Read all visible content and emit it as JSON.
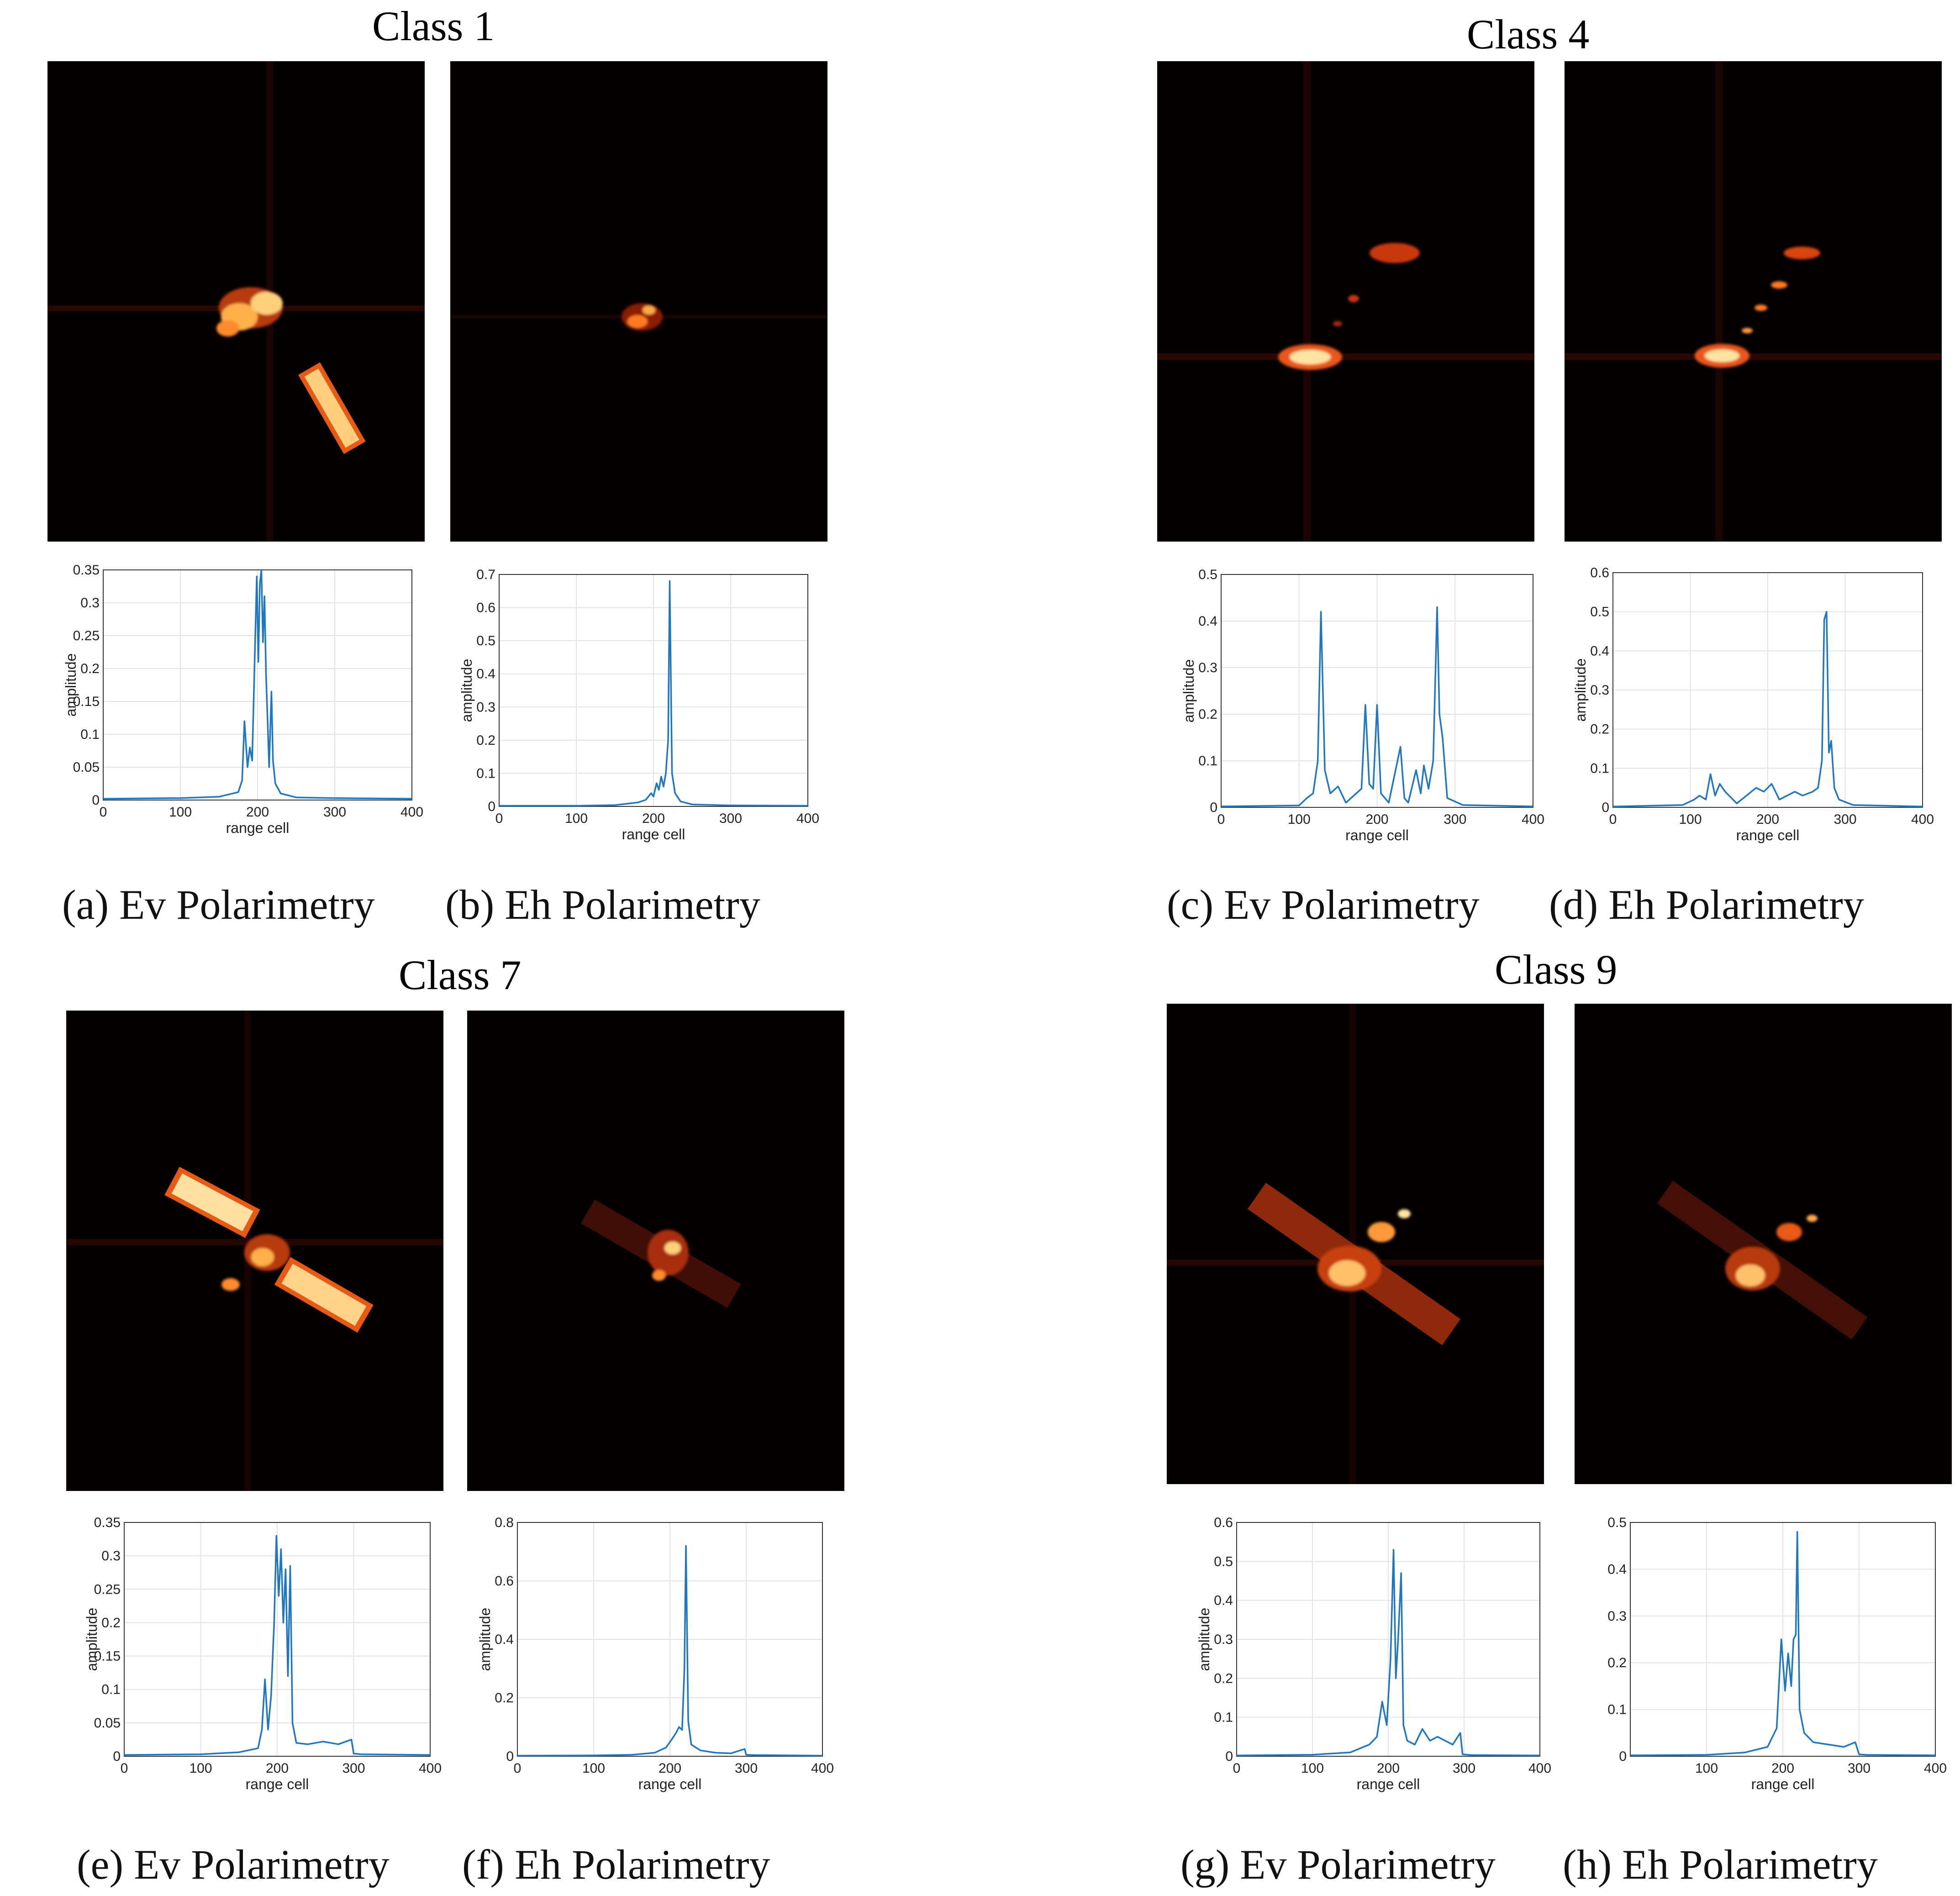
{
  "groups": [
    {
      "title": "Class 1",
      "panels": [
        {
          "caption": "(a) Ev Polarimetry",
          "chart_index": 0
        },
        {
          "caption": "(b) Eh Polarimetry",
          "chart_index": 1
        }
      ]
    },
    {
      "title": "Class 4",
      "panels": [
        {
          "caption": "(c) Ev Polarimetry",
          "chart_index": 2
        },
        {
          "caption": "(d) Eh Polarimetry",
          "chart_index": 3
        }
      ]
    },
    {
      "title": "Class 7",
      "panels": [
        {
          "caption": "(e) Ev Polarimetry",
          "chart_index": 4
        },
        {
          "caption": "(f) Eh Polarimetry",
          "chart_index": 5
        }
      ]
    },
    {
      "title": "Class 9",
      "panels": [
        {
          "caption": "(g) Ev Polarimetry",
          "chart_index": 6
        },
        {
          "caption": "(h) Eh Polarimetry",
          "chart_index": 7
        }
      ]
    }
  ],
  "colors": {
    "line": "#1f77c4",
    "grid": "#e3e3e3",
    "axis": "#333333",
    "image_bg": "#050000",
    "hot": "#ff6a1a"
  },
  "chart_data": [
    {
      "type": "line",
      "xlabel": "range cell",
      "ylabel": "amplitude",
      "xlim": [
        0,
        400
      ],
      "ylim": [
        0,
        0.35
      ],
      "xticks": [
        0,
        100,
        200,
        300,
        400
      ],
      "yticks": [
        0,
        0.05,
        0.1,
        0.15,
        0.2,
        0.25,
        0.3,
        0.35
      ],
      "grid": true,
      "x": [
        0,
        100,
        150,
        175,
        180,
        183,
        187,
        190,
        193,
        196,
        199,
        201,
        203,
        205,
        207,
        209,
        211,
        213,
        215,
        218,
        220,
        223,
        230,
        250,
        300,
        400
      ],
      "values": [
        0.002,
        0.003,
        0.005,
        0.012,
        0.03,
        0.12,
        0.05,
        0.08,
        0.06,
        0.2,
        0.34,
        0.21,
        0.33,
        0.35,
        0.24,
        0.31,
        0.19,
        0.12,
        0.05,
        0.165,
        0.06,
        0.025,
        0.01,
        0.004,
        0.003,
        0.002
      ]
    },
    {
      "type": "line",
      "xlabel": "range cell",
      "ylabel": "amplitude",
      "xlim": [
        0,
        400
      ],
      "ylim": [
        0,
        0.7
      ],
      "xticks": [
        0,
        100,
        200,
        300,
        400
      ],
      "yticks": [
        0,
        0.1,
        0.2,
        0.3,
        0.4,
        0.5,
        0.6,
        0.7
      ],
      "grid": true,
      "x": [
        0,
        100,
        150,
        180,
        190,
        197,
        200,
        204,
        207,
        210,
        213,
        216,
        219,
        221,
        224,
        228,
        235,
        250,
        300,
        400
      ],
      "values": [
        0.002,
        0.002,
        0.004,
        0.012,
        0.02,
        0.04,
        0.03,
        0.07,
        0.05,
        0.09,
        0.06,
        0.1,
        0.2,
        0.68,
        0.1,
        0.04,
        0.015,
        0.006,
        0.003,
        0.002
      ]
    },
    {
      "type": "line",
      "xlabel": "range cell",
      "ylabel": "amplitude",
      "xlim": [
        0,
        400
      ],
      "ylim": [
        0,
        0.5
      ],
      "xticks": [
        0,
        100,
        200,
        300,
        400
      ],
      "yticks": [
        0,
        0.1,
        0.2,
        0.3,
        0.4,
        0.5
      ],
      "grid": true,
      "x": [
        0,
        100,
        110,
        118,
        124,
        128,
        133,
        140,
        150,
        160,
        180,
        185,
        190,
        195,
        200,
        205,
        215,
        230,
        235,
        240,
        250,
        256,
        260,
        266,
        272,
        277,
        280,
        284,
        290,
        310,
        400
      ],
      "values": [
        0.002,
        0.004,
        0.02,
        0.03,
        0.1,
        0.42,
        0.08,
        0.03,
        0.045,
        0.01,
        0.04,
        0.22,
        0.05,
        0.04,
        0.22,
        0.03,
        0.01,
        0.13,
        0.02,
        0.01,
        0.08,
        0.03,
        0.09,
        0.04,
        0.1,
        0.43,
        0.2,
        0.15,
        0.02,
        0.005,
        0.002
      ]
    },
    {
      "type": "line",
      "xlabel": "range cell",
      "ylabel": "amplitude",
      "xlim": [
        0,
        400
      ],
      "ylim": [
        0,
        0.6
      ],
      "xticks": [
        0,
        100,
        200,
        300,
        400
      ],
      "yticks": [
        0,
        0.1,
        0.2,
        0.3,
        0.4,
        0.5,
        0.6
      ],
      "grid": true,
      "x": [
        0,
        90,
        105,
        112,
        120,
        126,
        132,
        138,
        145,
        160,
        185,
        195,
        205,
        215,
        235,
        245,
        258,
        265,
        270,
        273,
        276,
        279,
        282,
        286,
        292,
        310,
        400
      ],
      "values": [
        0.002,
        0.006,
        0.02,
        0.03,
        0.02,
        0.085,
        0.03,
        0.06,
        0.04,
        0.01,
        0.05,
        0.04,
        0.06,
        0.02,
        0.04,
        0.03,
        0.04,
        0.05,
        0.12,
        0.48,
        0.5,
        0.14,
        0.17,
        0.05,
        0.02,
        0.006,
        0.002
      ]
    },
    {
      "type": "line",
      "xlabel": "range cell",
      "ylabel": "amplitude",
      "xlim": [
        0,
        400
      ],
      "ylim": [
        0,
        0.35
      ],
      "xticks": [
        0,
        100,
        200,
        300,
        400
      ],
      "yticks": [
        0,
        0.05,
        0.1,
        0.15,
        0.2,
        0.25,
        0.3,
        0.35
      ],
      "grid": true,
      "x": [
        0,
        100,
        150,
        175,
        180,
        184,
        188,
        192,
        196,
        199,
        202,
        205,
        208,
        211,
        214,
        217,
        220,
        225,
        240,
        260,
        280,
        297,
        300,
        310,
        400
      ],
      "values": [
        0.002,
        0.003,
        0.006,
        0.012,
        0.04,
        0.115,
        0.04,
        0.09,
        0.2,
        0.33,
        0.24,
        0.31,
        0.2,
        0.28,
        0.12,
        0.285,
        0.05,
        0.02,
        0.018,
        0.022,
        0.018,
        0.025,
        0.004,
        0.003,
        0.002
      ]
    },
    {
      "type": "line",
      "xlabel": "range cell",
      "ylabel": "amplitude",
      "xlim": [
        0,
        400
      ],
      "ylim": [
        0,
        0.8
      ],
      "xticks": [
        0,
        100,
        200,
        300,
        400
      ],
      "yticks": [
        0,
        0.2,
        0.4,
        0.6,
        0.8
      ],
      "grid": true,
      "x": [
        0,
        100,
        150,
        180,
        195,
        203,
        208,
        212,
        216,
        219,
        221,
        224,
        228,
        240,
        260,
        280,
        298,
        300,
        310,
        400
      ],
      "values": [
        0.002,
        0.003,
        0.005,
        0.012,
        0.03,
        0.06,
        0.08,
        0.1,
        0.09,
        0.3,
        0.72,
        0.12,
        0.04,
        0.02,
        0.012,
        0.01,
        0.025,
        0.005,
        0.004,
        0.002
      ]
    },
    {
      "type": "line",
      "xlabel": "range cell",
      "ylabel": "amplitude",
      "xlim": [
        0,
        400
      ],
      "ylim": [
        0,
        0.6
      ],
      "xticks": [
        0,
        100,
        200,
        300,
        400
      ],
      "yticks": [
        0,
        0.1,
        0.2,
        0.3,
        0.4,
        0.5,
        0.6
      ],
      "grid": true,
      "x": [
        0,
        100,
        150,
        175,
        185,
        192,
        198,
        203,
        207,
        210,
        213,
        217,
        220,
        225,
        235,
        245,
        255,
        265,
        275,
        285,
        295,
        298,
        310,
        400
      ],
      "values": [
        0.002,
        0.004,
        0.01,
        0.03,
        0.05,
        0.14,
        0.08,
        0.25,
        0.53,
        0.2,
        0.3,
        0.47,
        0.08,
        0.04,
        0.03,
        0.07,
        0.04,
        0.05,
        0.04,
        0.03,
        0.06,
        0.005,
        0.003,
        0.002
      ]
    },
    {
      "type": "line",
      "xlabel": "range cell",
      "ylabel": "",
      "xlim": [
        0,
        400
      ],
      "ylim": [
        0,
        0.5
      ],
      "xticks": [
        100,
        200,
        300,
        400
      ],
      "yticks": [
        0,
        0.1,
        0.2,
        0.3,
        0.4,
        0.5
      ],
      "grid": true,
      "x": [
        0,
        100,
        150,
        180,
        192,
        198,
        203,
        207,
        211,
        214,
        217,
        219,
        222,
        228,
        240,
        260,
        280,
        295,
        300,
        310,
        400
      ],
      "values": [
        0.002,
        0.003,
        0.008,
        0.02,
        0.06,
        0.25,
        0.14,
        0.22,
        0.15,
        0.25,
        0.26,
        0.48,
        0.1,
        0.05,
        0.03,
        0.025,
        0.02,
        0.03,
        0.004,
        0.003,
        0.002
      ]
    }
  ]
}
